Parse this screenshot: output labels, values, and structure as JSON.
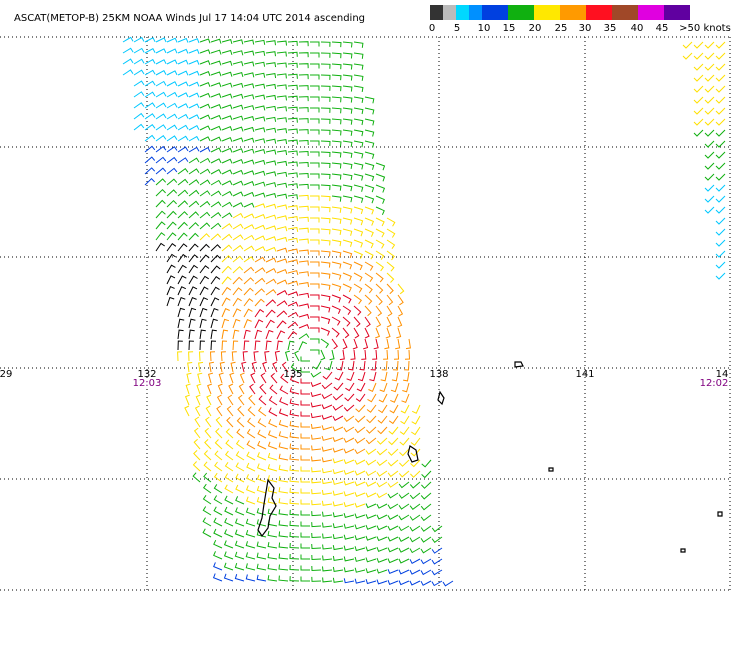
{
  "header": {
    "title": "ASCAT(METOP-B) 25KM NOAA Winds Jul 17 14:04 UTC 2014 ascending"
  },
  "colorbar": {
    "labels": [
      "0",
      "5",
      "10",
      "15",
      "20",
      "25",
      "30",
      "35",
      "40",
      "45",
      ">50 knots"
    ]
  },
  "map": {
    "longitude_labels": [
      "29",
      "132",
      "135",
      "138",
      "141",
      "14"
    ],
    "pass_times": [
      "12:03",
      "12:02"
    ]
  }
}
